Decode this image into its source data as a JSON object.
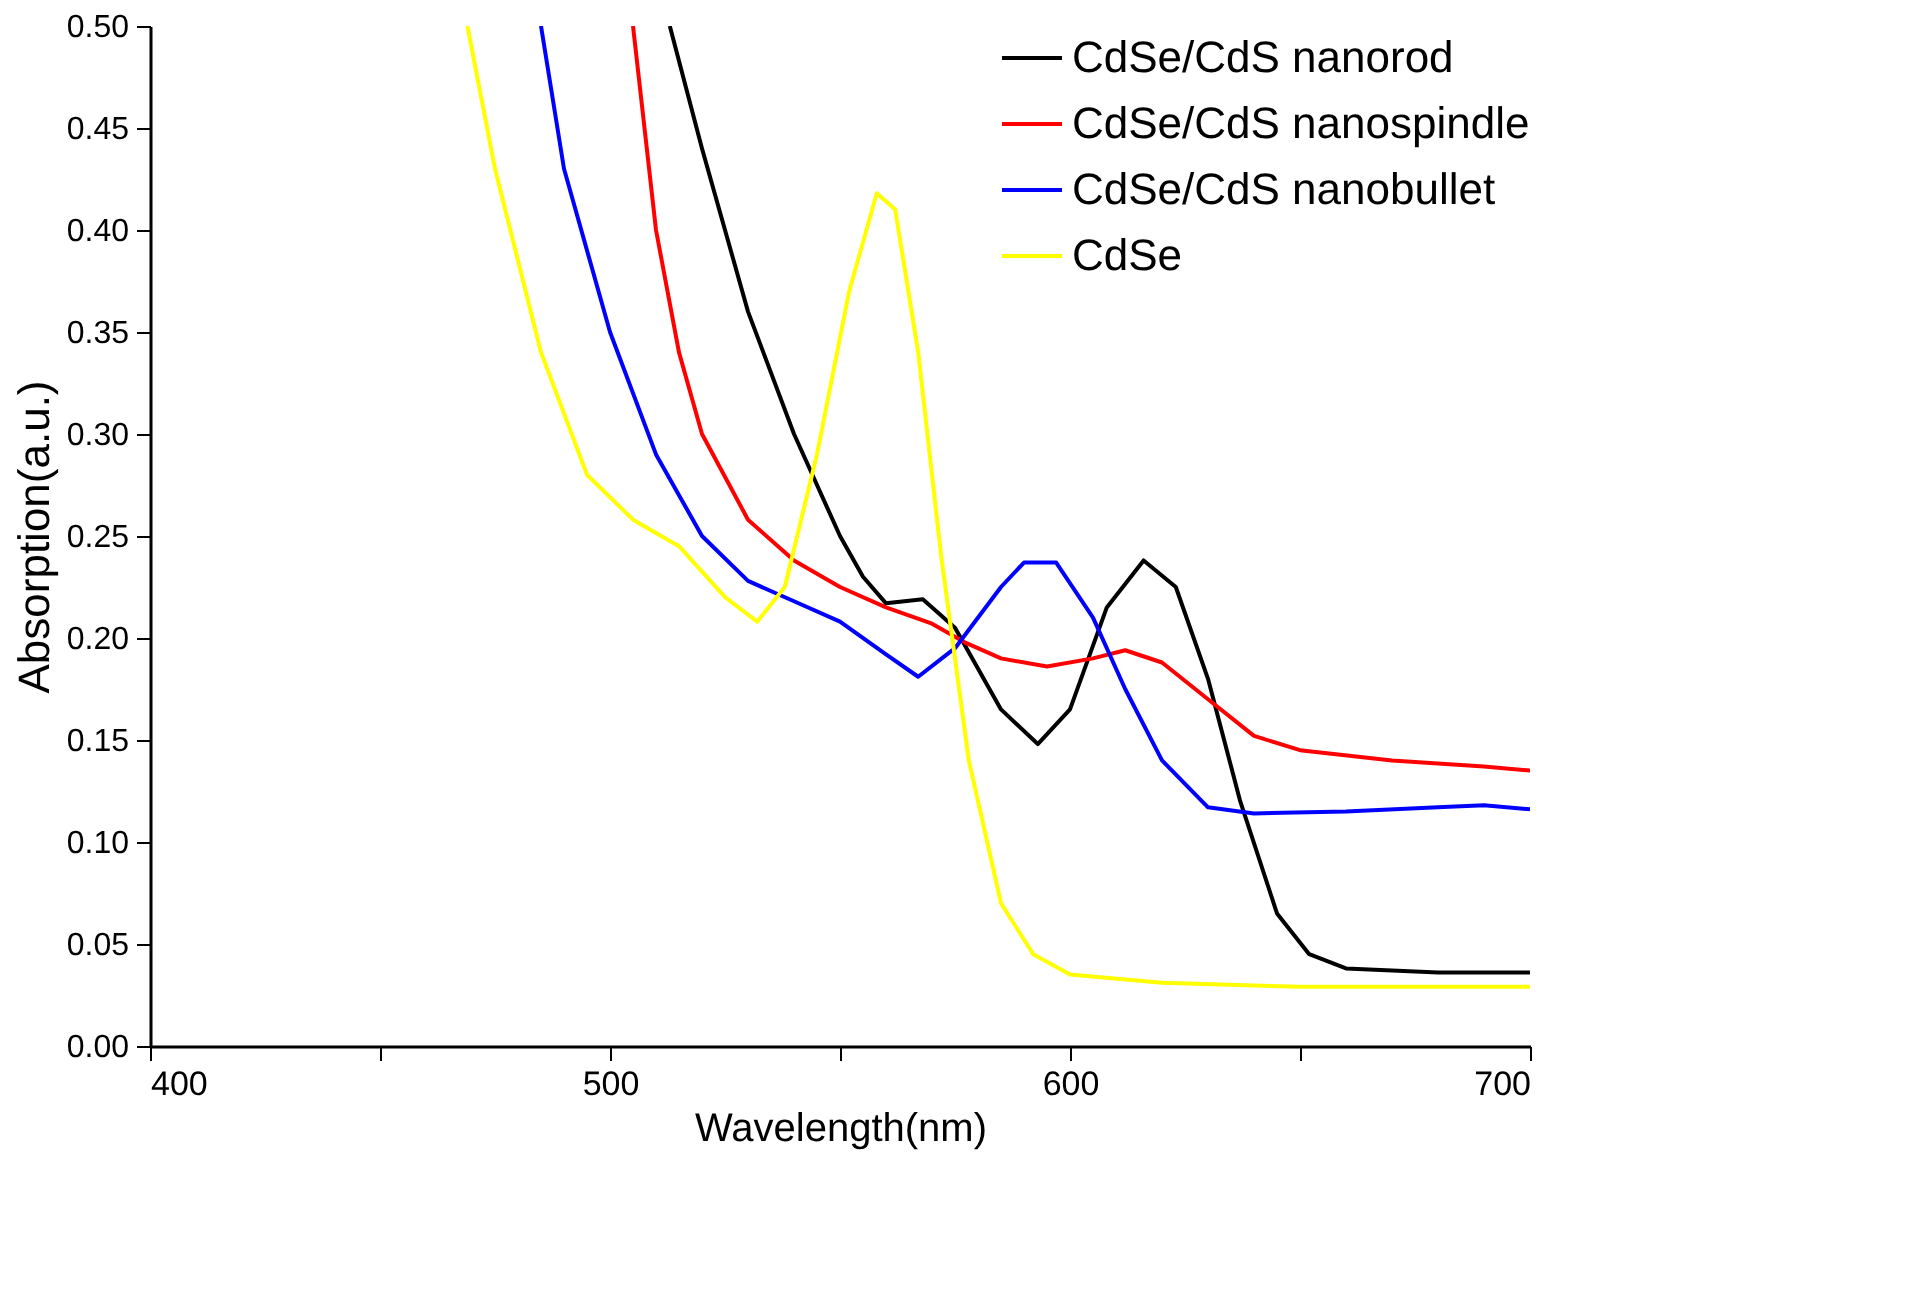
{
  "chart_data": {
    "type": "line",
    "xlabel": "Wavelength(nm)",
    "ylabel": "Absorption(a.u.)",
    "xlim": [
      400,
      700
    ],
    "ylim": [
      0,
      0.5
    ],
    "xticks": [
      400,
      {
        "value": 450,
        "label": null
      },
      500,
      {
        "value": 550,
        "label": null
      },
      600,
      {
        "value": 650,
        "label": null
      },
      700
    ],
    "yticks": [
      {
        "value": 0,
        "label": "0.00"
      },
      {
        "value": 0.05,
        "label": "0.05"
      },
      {
        "value": 0.1,
        "label": "0.10"
      },
      {
        "value": 0.15,
        "label": "0.15"
      },
      {
        "value": 0.2,
        "label": "0.20"
      },
      {
        "value": 0.25,
        "label": "0.25"
      },
      {
        "value": 0.3,
        "label": "0.30"
      },
      {
        "value": 0.35,
        "label": "0.35"
      },
      {
        "value": 0.4,
        "label": "0.40"
      },
      {
        "value": 0.45,
        "label": "0.45"
      },
      {
        "value": 0.5,
        "label": "0.50"
      }
    ],
    "grid": false,
    "legend": "top right",
    "marker": "none",
    "line_style": "solid",
    "series": [
      {
        "name": "CdSe/CdS nanorod",
        "color": "#000000",
        "x": [
          513,
          520,
          530,
          540,
          550,
          555,
          560,
          568,
          575,
          585,
          593,
          600,
          608,
          616,
          623,
          630,
          637,
          645,
          652,
          660,
          680,
          700
        ],
        "values": [
          0.5,
          0.44,
          0.36,
          0.3,
          0.25,
          0.23,
          0.217,
          0.219,
          0.205,
          0.165,
          0.148,
          0.165,
          0.215,
          0.238,
          0.225,
          0.18,
          0.12,
          0.065,
          0.045,
          0.038,
          0.036,
          0.036
        ]
      },
      {
        "name": "CdSe/CdS nanospindle",
        "color": "#ff0000",
        "x": [
          505,
          510,
          515,
          520,
          530,
          540,
          550,
          560,
          570,
          577,
          585,
          595,
          605,
          612,
          620,
          630,
          640,
          650,
          670,
          690,
          700
        ],
        "values": [
          0.5,
          0.4,
          0.34,
          0.3,
          0.258,
          0.238,
          0.225,
          0.215,
          0.207,
          0.198,
          0.19,
          0.186,
          0.19,
          0.194,
          0.188,
          0.17,
          0.152,
          0.145,
          0.14,
          0.137,
          0.135
        ]
      },
      {
        "name": "CdSe/CdS nanobullet",
        "color": "#0000ff",
        "x": [
          485,
          490,
          500,
          510,
          520,
          530,
          540,
          550,
          560,
          567,
          575,
          585,
          590,
          597,
          605,
          612,
          620,
          630,
          640,
          660,
          680,
          690,
          700
        ],
        "values": [
          0.5,
          0.43,
          0.35,
          0.29,
          0.25,
          0.228,
          0.218,
          0.208,
          0.192,
          0.181,
          0.195,
          0.225,
          0.237,
          0.237,
          0.21,
          0.175,
          0.14,
          0.117,
          0.114,
          0.115,
          0.117,
          0.118,
          0.116
        ]
      },
      {
        "name": "CdSe",
        "color": "#ffff00",
        "x": [
          469,
          475,
          485,
          495,
          505,
          515,
          525,
          532,
          538,
          545,
          552,
          558,
          562,
          567,
          572,
          578,
          585,
          592,
          600,
          620,
          650,
          700
        ],
        "values": [
          0.5,
          0.43,
          0.34,
          0.28,
          0.258,
          0.245,
          0.22,
          0.208,
          0.225,
          0.29,
          0.37,
          0.418,
          0.41,
          0.34,
          0.24,
          0.14,
          0.07,
          0.045,
          0.035,
          0.031,
          0.029,
          0.029
        ]
      }
    ]
  }
}
